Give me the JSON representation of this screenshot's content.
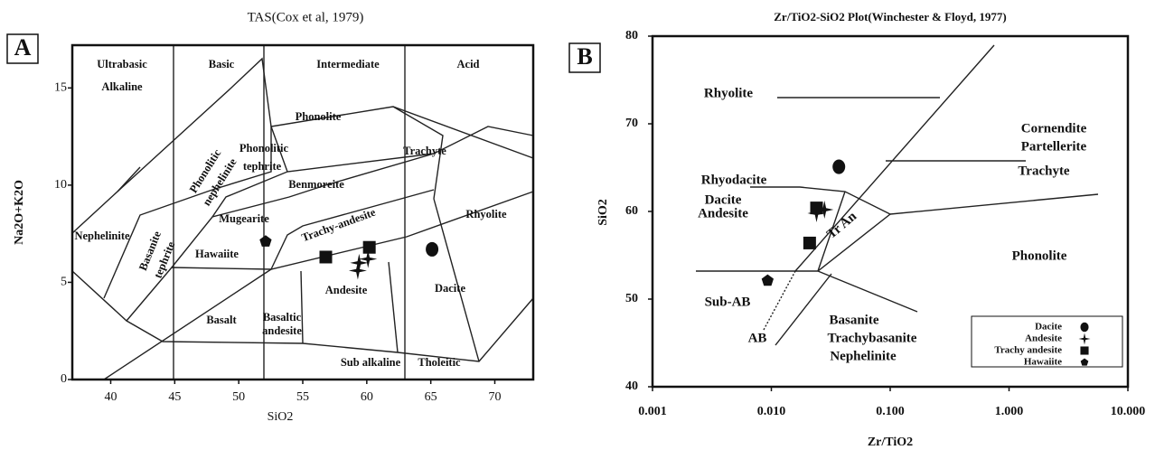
{
  "chart_data": [
    {
      "type": "scatter",
      "panel_label": "A",
      "title": "TAS(Cox et al, 1979)",
      "x_label": "SiO2",
      "y_label": "Na2O+K2O",
      "xlim": [
        37,
        73
      ],
      "ylim": [
        0,
        17.2
      ],
      "xticks": [
        40,
        45,
        50,
        55,
        60,
        65,
        70
      ],
      "yticks": [
        0,
        5,
        10,
        15
      ],
      "series": [
        {
          "marker": "pentagon",
          "color": "#111",
          "x": [
            52.1
          ],
          "y": [
            7.1
          ]
        },
        {
          "marker": "square",
          "color": "#111",
          "x": [
            56.8,
            60.2
          ],
          "y": [
            6.3,
            6.8
          ]
        },
        {
          "marker": "star",
          "color": "#111",
          "x": [
            59.4,
            60.1,
            59.3
          ],
          "y": [
            6.0,
            6.2,
            5.6
          ]
        },
        {
          "marker": "circle",
          "color": "#111",
          "x": [
            65.1
          ],
          "y": [
            6.7
          ]
        }
      ],
      "annotations": [
        "Ultrabasic",
        "Alkaline",
        "Basic",
        "Intermediate",
        "Acid",
        "Phonolite",
        "Phonolitic",
        "nephelinite",
        "Phonolitic",
        "tephrite",
        "Trachyte",
        "Benmoreite",
        "Mugearite",
        "Trachy-andesite",
        "Rhyolite",
        "Nephelinite",
        "Basanite",
        "tephrite",
        "Hawaiite",
        "Dacite",
        "Basaltic",
        "andesite",
        "Andesite",
        "Basalt",
        "Sub alkaline",
        "Tholeitic"
      ]
    },
    {
      "type": "scatter",
      "panel_label": "B",
      "title": "Zr/TiO2-SiO2 Plot(Winchester & Floyd, 1977)",
      "x_label": "Zr/TiO2",
      "y_label": "SiO2",
      "x_log": true,
      "xlim": [
        0.001,
        10
      ],
      "ylim": [
        40,
        80
      ],
      "xticks": [
        {
          "value": 0.001,
          "label": "0.001"
        },
        {
          "value": 0.01,
          "label": "0.010"
        },
        {
          "value": 0.1,
          "label": "0.100"
        },
        {
          "value": 1,
          "label": "1.000"
        },
        {
          "value": 10,
          "label": "10.000"
        }
      ],
      "yticks": [
        40,
        50,
        60,
        70,
        80
      ],
      "legend": "lower right",
      "series": [
        {
          "name": "Dacite",
          "marker": "circle",
          "color": "#111",
          "x": [
            0.037
          ],
          "y": [
            65.1
          ]
        },
        {
          "name": "Andesite",
          "marker": "star",
          "color": "#111",
          "x": [
            0.024,
            0.028
          ],
          "y": [
            59.8,
            60.2
          ]
        },
        {
          "name": "Trachy andesite",
          "marker": "square",
          "color": "#111",
          "x": [
            0.024,
            0.021
          ],
          "y": [
            60.4,
            56.4
          ]
        },
        {
          "name": "Hawaiite",
          "marker": "pentagon",
          "color": "#111",
          "x": [
            0.0093
          ],
          "y": [
            52.1
          ]
        }
      ],
      "annotations": [
        "Rhyolite",
        "Cornendite",
        "Partellerite",
        "Rhyodacite",
        "Dacite",
        "Trachyte",
        "Andesite",
        "Tr An",
        "Phonolite",
        "Sub-AB",
        "AB",
        "Basanite",
        "Trachybasanite",
        "Nephelinite"
      ]
    }
  ]
}
